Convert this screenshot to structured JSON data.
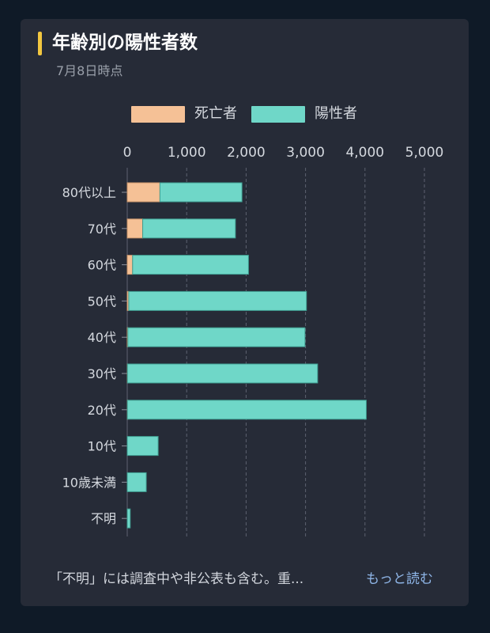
{
  "header": {
    "title": "年齢別の陽性者数",
    "subtitle": "7月8日時点"
  },
  "legend": [
    {
      "label": "死亡者",
      "color": "#f5c196"
    },
    {
      "label": "陽性者",
      "color": "#6fd7c8"
    }
  ],
  "footer": {
    "note": "「不明」には調査中や非公表も含む。重...",
    "more_label": "もっと読む"
  },
  "chart_data": {
    "type": "bar",
    "stacked": true,
    "orientation": "horizontal",
    "categories": [
      "80代以上",
      "70代",
      "60代",
      "50代",
      "40代",
      "30代",
      "20代",
      "10代",
      "10歳未満",
      "不明"
    ],
    "series": [
      {
        "name": "死亡者",
        "color": "#f5c196",
        "values": [
          550,
          260,
          90,
          25,
          10,
          3,
          2,
          0,
          0,
          0
        ]
      },
      {
        "name": "陽性者",
        "color": "#6fd7c8",
        "values": [
          1380,
          1560,
          1950,
          2990,
          2980,
          3200,
          4020,
          520,
          320,
          50
        ]
      }
    ],
    "xlim": [
      0,
      5000
    ],
    "xticks": [
      0,
      1000,
      2000,
      3000,
      4000,
      5000
    ],
    "xtick_labels": [
      "0",
      "1,000",
      "2,000",
      "3,000",
      "4,000",
      "5,000"
    ],
    "grid": true,
    "legend_position": "top"
  }
}
